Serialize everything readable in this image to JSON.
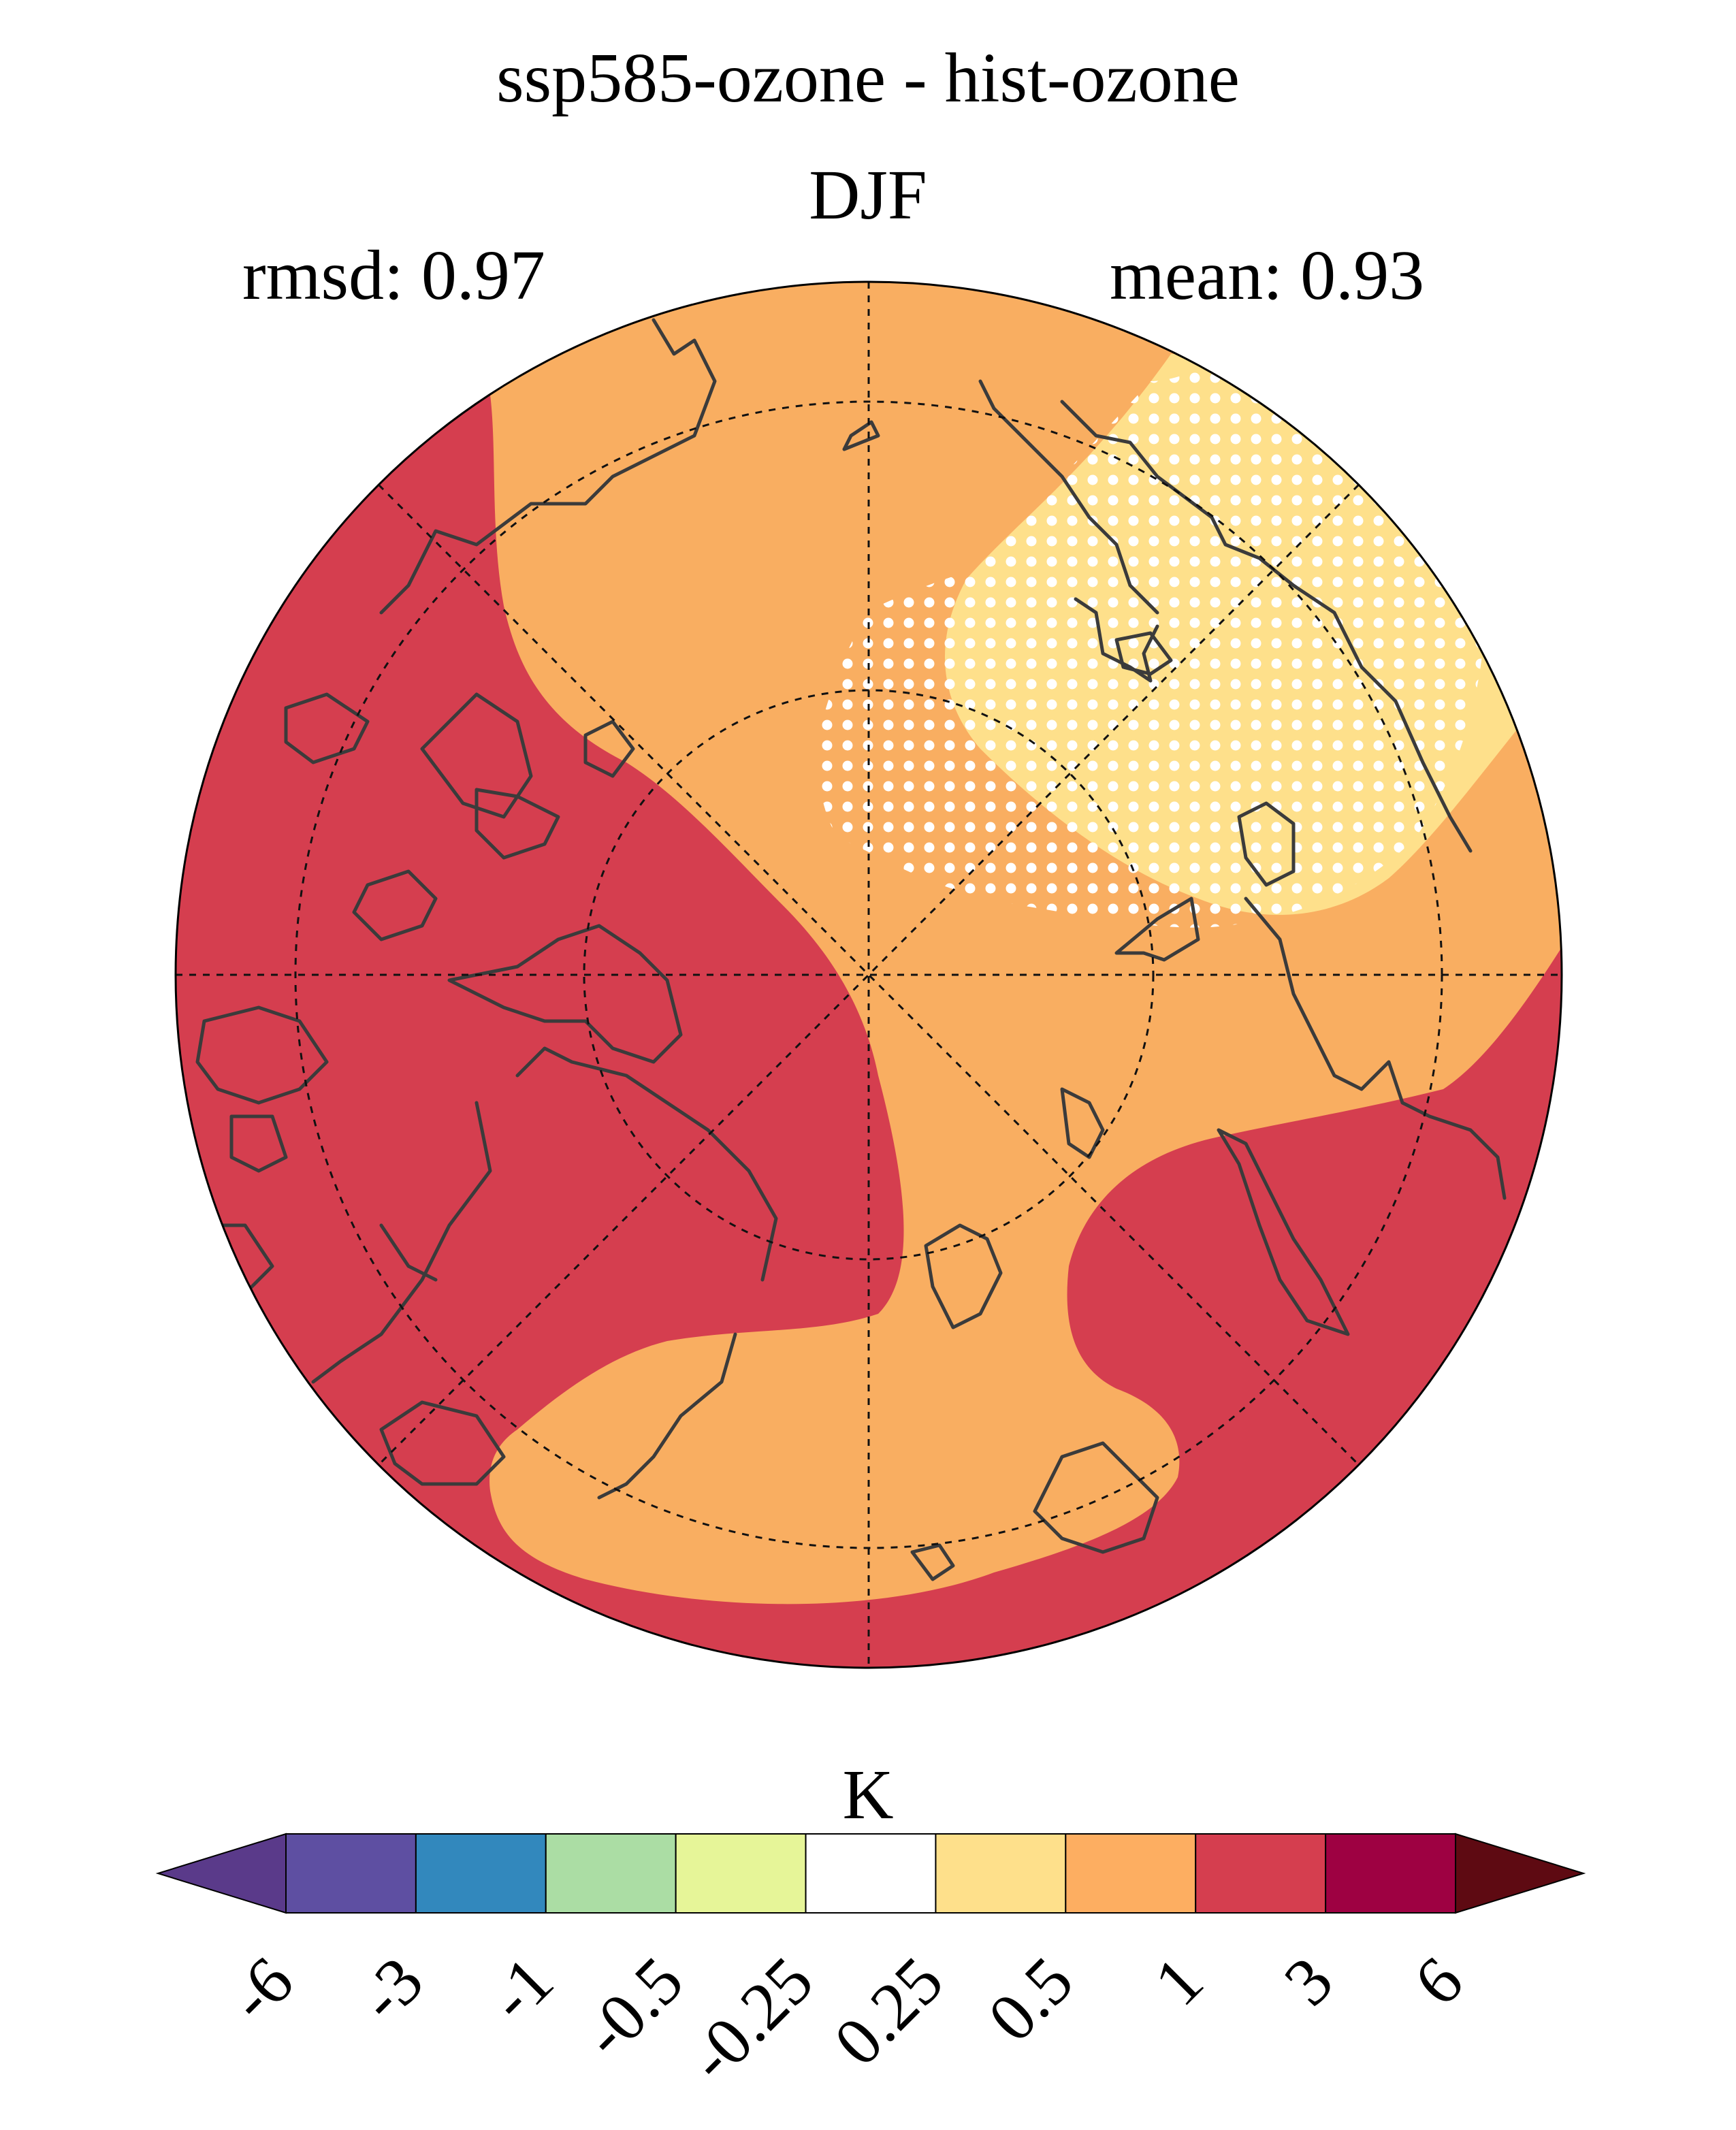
{
  "figure": {
    "title": "ssp585-ozone - hist-ozone",
    "season": "DJF",
    "rmsd_text": "rmsd: 0.97",
    "mean_text": "mean: 0.93",
    "units": "K"
  },
  "map": {
    "projection": "north-polar-stereographic",
    "variable_units": "K",
    "stippling": "white dots mark regions over north-east Asia / East Siberia",
    "colors": {
      "background": "#ffffff",
      "coastline": "#3b3b3b",
      "graticule": "#111111",
      "stipple": "#ffffff",
      "regions": {
        "band_1_to_3": "#d53e4f",
        "band_0.5_to_1": "#f9ae61",
        "band_0.25_to_0.5": "#fee08b"
      }
    }
  },
  "colorbar": {
    "orientation": "horizontal",
    "extend": "both",
    "ticks": [
      "-6",
      "-3",
      "-1",
      "-0.5",
      "-0.25",
      "0.25",
      "0.5",
      "1",
      "3",
      "6"
    ],
    "colors": [
      "#5e4fa2",
      "#3288bd",
      "#abdda4",
      "#e6f598",
      "#ffffff",
      "#fee08b",
      "#fdae61",
      "#d53e4f",
      "#9e0142"
    ],
    "under_color": "#5a3a8a",
    "over_color": "#5e0a12"
  }
}
